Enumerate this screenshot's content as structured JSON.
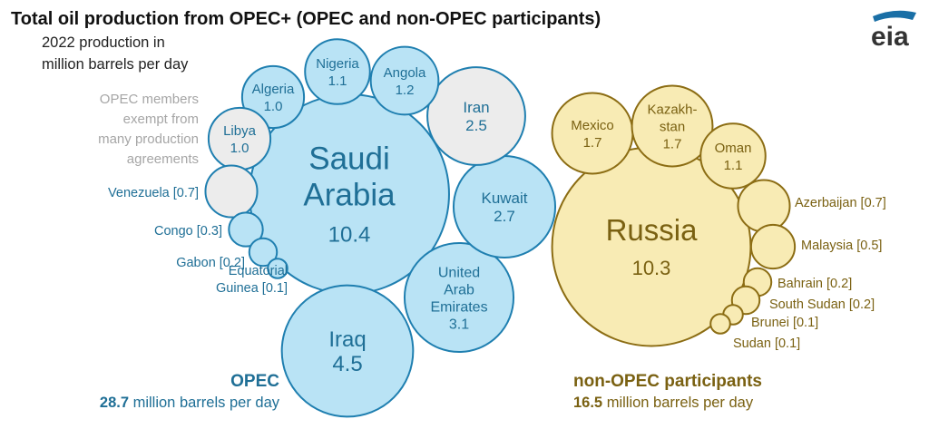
{
  "title": "Total oil production from OPEC+ (OPEC and non-OPEC participants)",
  "subtitle_lines": [
    "2022 production in",
    "million barrels per day"
  ],
  "exempt_note_lines": [
    "OPEC members",
    "exempt from",
    "many production",
    "agreements"
  ],
  "logo": "eia",
  "colors": {
    "opec_fill": "#b9e3f5",
    "opec_stroke": "#1f7fb0",
    "opec_text": "#1f6f96",
    "exempt_fill": "#ececec",
    "nonopec_fill": "#f8ebb4",
    "nonopec_stroke": "#8c6d14",
    "nonopec_text": "#7a6112"
  },
  "groups": {
    "opec": {
      "title": "OPEC",
      "total_value": "28.7",
      "total_unit": " million barrels per day"
    },
    "nonopec": {
      "title": "non-OPEC participants",
      "total_value": "16.5",
      "total_unit": " million barrels per day"
    }
  },
  "chart_data": {
    "type": "bubble",
    "unit": "million barrels per day",
    "series": [
      {
        "name": "OPEC",
        "points": [
          {
            "label_lines": [
              "Saudi",
              "Arabia"
            ],
            "value_text": "10.4",
            "value": 10.4,
            "exempt": false
          },
          {
            "label_lines": [
              "Iraq"
            ],
            "value_text": "4.5",
            "value": 4.5,
            "exempt": false
          },
          {
            "label_lines": [
              "United",
              "Arab",
              "Emirates"
            ],
            "value_text": "3.1",
            "value": 3.1,
            "exempt": false
          },
          {
            "label_lines": [
              "Kuwait"
            ],
            "value_text": "2.7",
            "value": 2.7,
            "exempt": false
          },
          {
            "label_lines": [
              "Iran"
            ],
            "value_text": "2.5",
            "value": 2.5,
            "exempt": true
          },
          {
            "label_lines": [
              "Angola"
            ],
            "value_text": "1.2",
            "value": 1.2,
            "exempt": false
          },
          {
            "label_lines": [
              "Nigeria"
            ],
            "value_text": "1.1",
            "value": 1.1,
            "exempt": false
          },
          {
            "label_lines": [
              "Algeria"
            ],
            "value_text": "1.0",
            "value": 1.0,
            "exempt": false
          },
          {
            "label_lines": [
              "Libya"
            ],
            "value_text": "1.0",
            "value": 1.0,
            "exempt": true
          },
          {
            "label_lines": [
              "Venezuela [0.7]"
            ],
            "value_text": "",
            "value": 0.7,
            "exempt": true,
            "external": true
          },
          {
            "label_lines": [
              "Congo [0.3]"
            ],
            "value_text": "",
            "value": 0.3,
            "exempt": false,
            "external": true
          },
          {
            "label_lines": [
              "Gabon [0.2]"
            ],
            "value_text": "",
            "value": 0.2,
            "exempt": false,
            "external": true
          },
          {
            "label_lines": [
              "Equatorial",
              "Guinea [0.1]"
            ],
            "value_text": "",
            "value": 0.1,
            "exempt": false,
            "external": true
          }
        ]
      },
      {
        "name": "non-OPEC participants",
        "points": [
          {
            "label_lines": [
              "Russia"
            ],
            "value_text": "10.3",
            "value": 10.3
          },
          {
            "label_lines": [
              "Mexico"
            ],
            "value_text": "1.7",
            "value": 1.7
          },
          {
            "label_lines": [
              "Kazakh-",
              "stan"
            ],
            "value_text": "1.7",
            "value": 1.7
          },
          {
            "label_lines": [
              "Oman"
            ],
            "value_text": "1.1",
            "value": 1.1
          },
          {
            "label_lines": [
              "Azerbaijan [0.7]"
            ],
            "value_text": "",
            "value": 0.7,
            "external": true
          },
          {
            "label_lines": [
              "Malaysia [0.5]"
            ],
            "value_text": "",
            "value": 0.5,
            "external": true
          },
          {
            "label_lines": [
              "Bahrain [0.2]"
            ],
            "value_text": "",
            "value": 0.2,
            "external": true
          },
          {
            "label_lines": [
              "South Sudan [0.2]"
            ],
            "value_text": "",
            "value": 0.2,
            "external": true
          },
          {
            "label_lines": [
              "Brunei [0.1]"
            ],
            "value_text": "",
            "value": 0.1,
            "external": true
          },
          {
            "label_lines": [
              "Sudan [0.1]"
            ],
            "value_text": "",
            "value": 0.1,
            "external": true
          }
        ]
      }
    ]
  }
}
